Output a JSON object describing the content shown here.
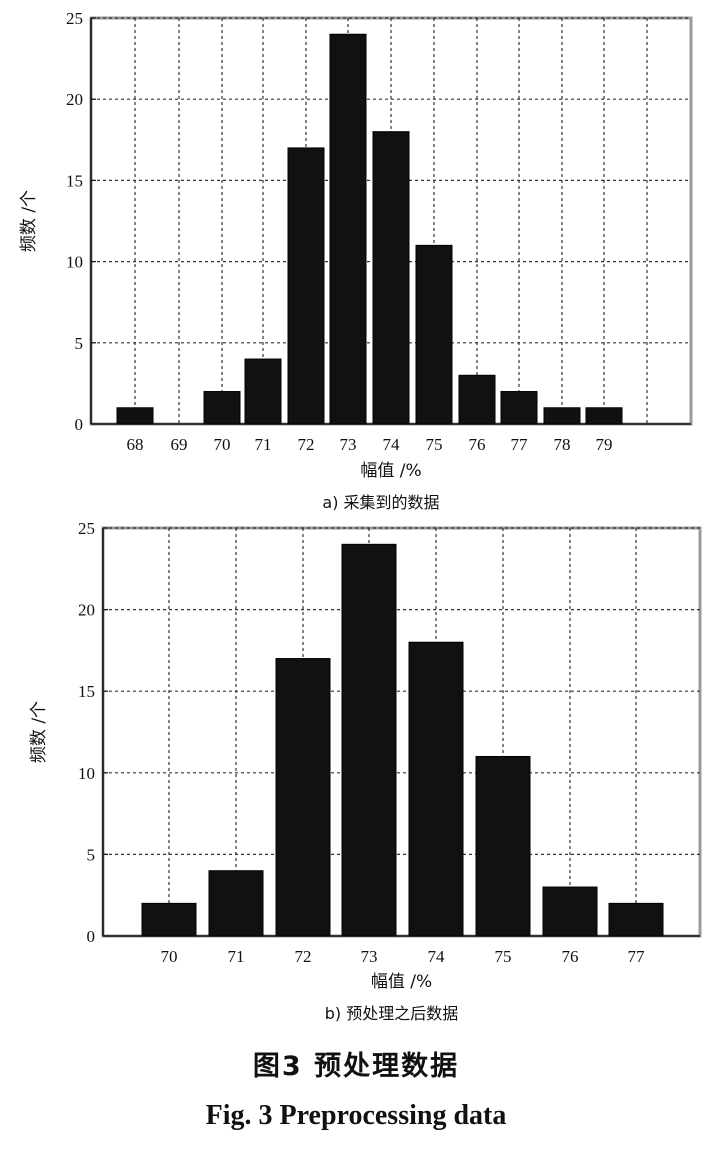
{
  "chart_data": [
    {
      "type": "bar",
      "categories": [
        "68",
        "69",
        "70",
        "71",
        "72",
        "73",
        "74",
        "75",
        "76",
        "77",
        "78",
        "79"
      ],
      "values": [
        1,
        0,
        2,
        4,
        17,
        24,
        18,
        11,
        3,
        2,
        1,
        1
      ],
      "xlabel": "幅值 /%",
      "ylabel": "频数 /个",
      "yticks": [
        "0",
        "5",
        "10",
        "15",
        "20",
        "25"
      ],
      "ylim": [
        0,
        25
      ],
      "grid": true,
      "caption": "a) 采集到的数据"
    },
    {
      "type": "bar",
      "categories": [
        "70",
        "71",
        "72",
        "73",
        "74",
        "75",
        "76",
        "77"
      ],
      "values": [
        2,
        4,
        17,
        24,
        18,
        11,
        3,
        2
      ],
      "xlabel": "幅值 /%",
      "ylabel": "频数 /个",
      "yticks": [
        "0",
        "5",
        "10",
        "15",
        "20",
        "25"
      ],
      "ylim": [
        0,
        25
      ],
      "grid": true,
      "caption": "b) 预处理之后数据"
    }
  ],
  "figure": {
    "title_cn": "图3  预处理数据",
    "title_en": "Fig. 3  Preprocessing data"
  },
  "colors": {
    "bar": "#111111",
    "grid": "#333333",
    "frame": "#111111"
  }
}
